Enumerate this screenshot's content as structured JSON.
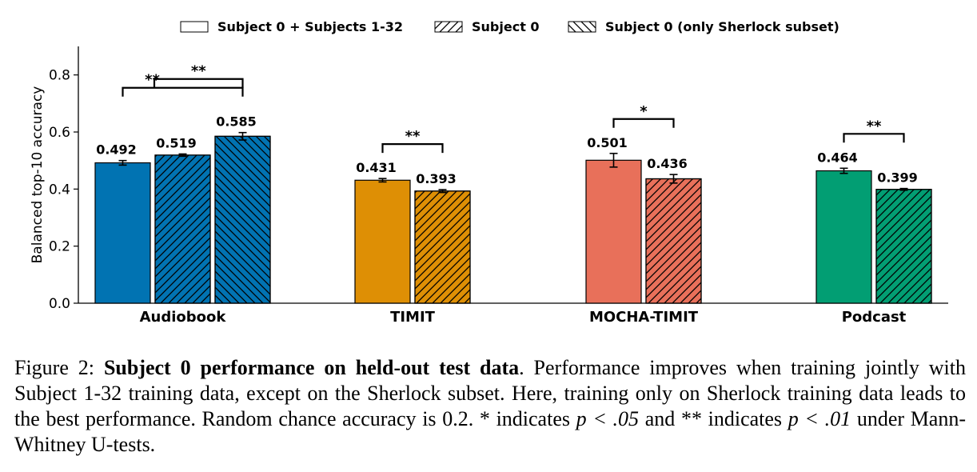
{
  "chart_data": {
    "type": "bar",
    "ylabel": "Balanced top-10 accuracy",
    "ylim": [
      0.0,
      0.9
    ],
    "yticks": [
      "0.0",
      "0.2",
      "0.4",
      "0.6",
      "0.8"
    ],
    "legend": {
      "placement": "top-center",
      "entries": [
        {
          "label": "Subject 0 + Subjects 1-32",
          "hatch": "none"
        },
        {
          "label": "Subject 0",
          "hatch": "forward"
        },
        {
          "label": "Subject 0 (only Sherlock subset)",
          "hatch": "backward"
        }
      ]
    },
    "groups": [
      {
        "category": "Audiobook",
        "color": "#0173b2",
        "bars": [
          {
            "series": "Subject 0 + Subjects 1-32",
            "value": 0.492,
            "label": "0.492",
            "err": 0.008
          },
          {
            "series": "Subject 0",
            "value": 0.519,
            "label": "0.519",
            "err": 0.004
          },
          {
            "series": "Subject 0 (only Sherlock subset)",
            "value": 0.585,
            "label": "0.585",
            "err": 0.013
          }
        ],
        "significance": [
          {
            "from": 0,
            "to": 2,
            "label": "**"
          },
          {
            "from": 1,
            "to": 2,
            "label": "**"
          }
        ]
      },
      {
        "category": "TIMIT",
        "color": "#de8f05",
        "bars": [
          {
            "series": "Subject 0 + Subjects 1-32",
            "value": 0.431,
            "label": "0.431",
            "err": 0.006
          },
          {
            "series": "Subject 0",
            "value": 0.393,
            "label": "0.393",
            "err": 0.005
          }
        ],
        "significance": [
          {
            "from": 0,
            "to": 1,
            "label": "**"
          }
        ]
      },
      {
        "category": "MOCHA-TIMIT",
        "color": "#e8705a",
        "bars": [
          {
            "series": "Subject 0 + Subjects 1-32",
            "value": 0.501,
            "label": "0.501",
            "err": 0.024
          },
          {
            "series": "Subject 0",
            "value": 0.436,
            "label": "0.436",
            "err": 0.015
          }
        ],
        "significance": [
          {
            "from": 0,
            "to": 1,
            "label": "*"
          }
        ]
      },
      {
        "category": "Podcast",
        "color": "#029e73",
        "bars": [
          {
            "series": "Subject 0 + Subjects 1-32",
            "value": 0.464,
            "label": "0.464",
            "err": 0.009
          },
          {
            "series": "Subject 0",
            "value": 0.399,
            "label": "0.399",
            "err": 0.003
          }
        ],
        "significance": [
          {
            "from": 0,
            "to": 1,
            "label": "**"
          }
        ]
      }
    ],
    "grid": false
  },
  "caption": {
    "prefix": "Figure 2: ",
    "bold": "Subject 0 performance on held-out test data",
    "text1": ". Performance improves when training jointly with Subject 1-32 training data, except on the Sherlock subset. Here, training only on Sherlock training data leads to the best performance. Random chance accuracy is 0.2. * indicates ",
    "p1": "p < .05",
    "text2": " and ** indicates ",
    "p2": "p < .01",
    "text3": " under Mann-Whitney U-tests."
  }
}
